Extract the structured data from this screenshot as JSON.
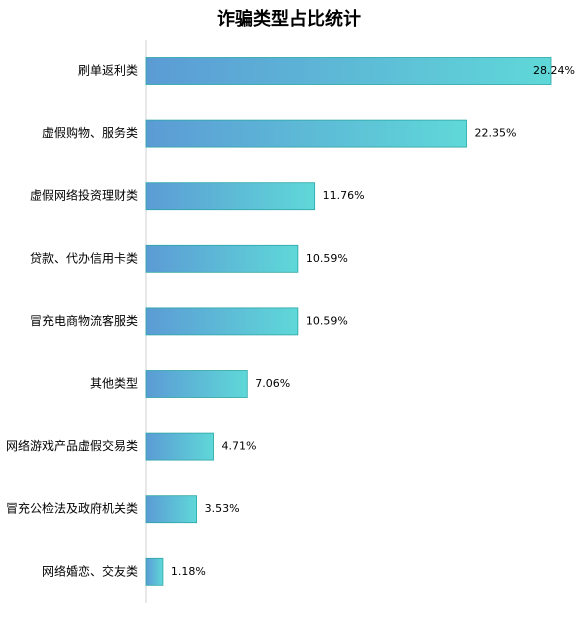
{
  "chart_data": {
    "type": "bar",
    "orientation": "horizontal",
    "title": "诈骗类型占比统计",
    "categories": [
      "刷单返利类",
      "虚假购物、服务类",
      "虚假网络投资理财类",
      "贷款、代办信用卡类",
      "冒充电商物流客服类",
      "其他类型",
      "网络游戏产品虚假交易类",
      "冒充公检法及政府机关类",
      "网络婚恋、交友类"
    ],
    "values": [
      28.24,
      22.35,
      11.76,
      10.59,
      10.59,
      7.06,
      4.71,
      3.53,
      1.18
    ],
    "value_labels": [
      "28.24%",
      "22.35%",
      "11.76%",
      "10.59%",
      "10.59%",
      "7.06%",
      "4.71%",
      "3.53%",
      "1.18%"
    ],
    "gradient": [
      "#5b9bd5",
      "#5fd8d8"
    ],
    "stroke": "#2aa6a6"
  }
}
